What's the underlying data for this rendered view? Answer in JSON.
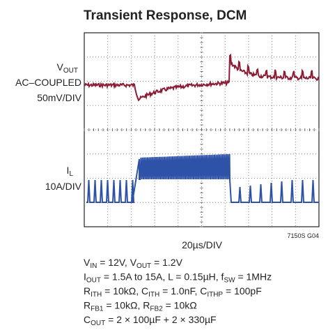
{
  "chart_data": {
    "type": "scope",
    "title": "Transient Response, DCM",
    "traces": [
      {
        "label": [
          {
            "text": "V"
          },
          {
            "text": "OUT",
            "sub": true
          }
        ],
        "coupling": "AC–COUPLED",
        "scale": "50mV/DIV",
        "color": "#8c1b33"
      },
      {
        "label": [
          {
            "text": "I"
          },
          {
            "text": "L",
            "sub": true
          }
        ],
        "scale": "10A/DIV",
        "color": "#2e52a8"
      }
    ],
    "time_scale": "20µs/DIV",
    "figure_id": "7150S G04",
    "conditions": [
      [
        {
          "text": "V"
        },
        {
          "text": "IN",
          "sub": true
        },
        {
          "text": " = 12V, V"
        },
        {
          "text": "OUT",
          "sub": true
        },
        {
          "text": " = 1.2V"
        }
      ],
      [
        {
          "text": "I"
        },
        {
          "text": "OUT",
          "sub": true
        },
        {
          "text": " = 1.5A to 15A, L = 0.15µH, f"
        },
        {
          "text": "SW",
          "sub": true
        },
        {
          "text": " = 1MHz"
        }
      ],
      [
        {
          "text": "R"
        },
        {
          "text": "ITH",
          "sub": true
        },
        {
          "text": " = 10kΩ, C"
        },
        {
          "text": "ITH",
          "sub": true
        },
        {
          "text": " = 1.0nF, C"
        },
        {
          "text": "ITHP",
          "sub": true
        },
        {
          "text": " = 100pF"
        }
      ],
      [
        {
          "text": "R"
        },
        {
          "text": "FB1",
          "sub": true
        },
        {
          "text": " = 10kΩ, R"
        },
        {
          "text": "FB2",
          "sub": true
        },
        {
          "text": " = 10kΩ"
        }
      ],
      [
        {
          "text": "C"
        },
        {
          "text": "OUT",
          "sub": true
        },
        {
          "text": " = 2 × 100µF + 2 × 330µF"
        }
      ]
    ]
  }
}
